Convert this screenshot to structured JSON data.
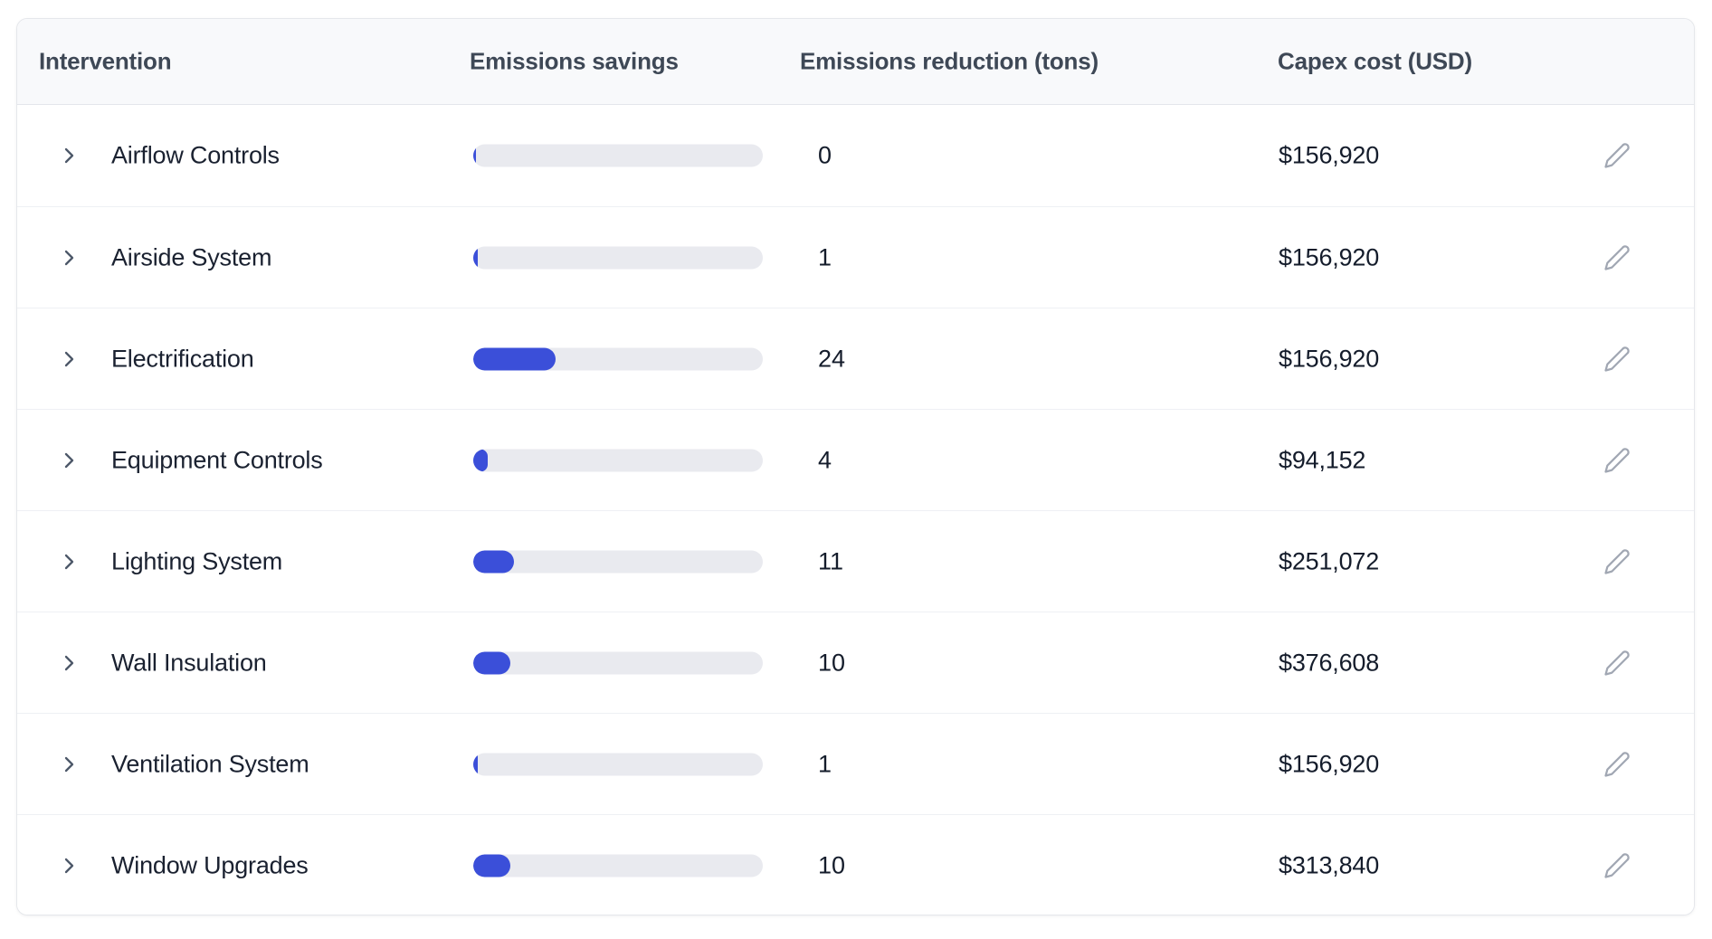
{
  "table": {
    "columns": [
      "Intervention",
      "Emissions savings",
      "Emissions reduction (tons)",
      "Capex cost (USD)"
    ],
    "rows": [
      {
        "name": "Airflow Controls",
        "savings_pct": 1,
        "reduction_tons": "0",
        "capex": "$156,920"
      },
      {
        "name": "Airside System",
        "savings_pct": 1.6,
        "reduction_tons": "1",
        "capex": "$156,920"
      },
      {
        "name": "Electrification",
        "savings_pct": 28.4,
        "reduction_tons": "24",
        "capex": "$156,920"
      },
      {
        "name": "Equipment Controls",
        "savings_pct": 5,
        "reduction_tons": "4",
        "capex": "$94,152"
      },
      {
        "name": "Lighting System",
        "savings_pct": 14,
        "reduction_tons": "11",
        "capex": "$251,072"
      },
      {
        "name": "Wall Insulation",
        "savings_pct": 12.8,
        "reduction_tons": "10",
        "capex": "$376,608"
      },
      {
        "name": "Ventilation System",
        "savings_pct": 1.6,
        "reduction_tons": "1",
        "capex": "$156,920"
      },
      {
        "name": "Window Upgrades",
        "savings_pct": 12.8,
        "reduction_tons": "10",
        "capex": "$313,840"
      }
    ],
    "icons": {
      "row_expander": "chevron-right-icon",
      "row_action": "pencil-icon"
    },
    "colors": {
      "bar_fill": "#3b4fd9",
      "bar_track": "#e9eaef",
      "header_bg": "#f8f9fb"
    }
  }
}
